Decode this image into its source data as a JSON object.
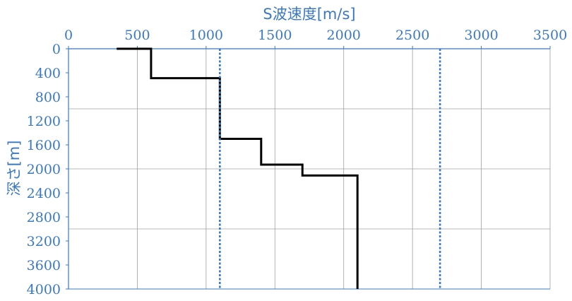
{
  "chart_data": {
    "type": "line",
    "title": "",
    "xlabel": "S波速度[m/s]",
    "ylabel": "深さ[m]",
    "xlim": [
      0,
      3500
    ],
    "ylim": [
      0,
      4000
    ],
    "y_inverted": true,
    "x_axis_position": "top",
    "x_ticks": [
      "0",
      "500",
      "1000",
      "1500",
      "2000",
      "2500",
      "3000",
      "3500"
    ],
    "y_ticks": [
      "0",
      "400",
      "800",
      "1200",
      "1600",
      "2000",
      "2400",
      "2800",
      "3200",
      "3600",
      "4000"
    ],
    "horizontal_gridlines_at": [
      1000,
      2000,
      3000
    ],
    "grid": true,
    "legend": "none",
    "series": [
      {
        "style": "solid",
        "color": "#000000",
        "points": [
          [
            350,
            0
          ],
          [
            600,
            0
          ],
          [
            600,
            490
          ],
          [
            1100,
            490
          ],
          [
            1100,
            1500
          ],
          [
            1400,
            1500
          ],
          [
            1400,
            1930
          ],
          [
            1700,
            1930
          ],
          [
            1700,
            2110
          ],
          [
            2100,
            2110
          ],
          [
            2100,
            4000
          ]
        ]
      },
      {
        "style": "dotted",
        "color": "#3a78c3",
        "points": [
          [
            1100,
            0
          ],
          [
            1100,
            4000
          ]
        ]
      },
      {
        "style": "dotted",
        "color": "#3a78c3",
        "points": [
          [
            2700,
            0
          ],
          [
            2700,
            4000
          ]
        ]
      }
    ]
  }
}
